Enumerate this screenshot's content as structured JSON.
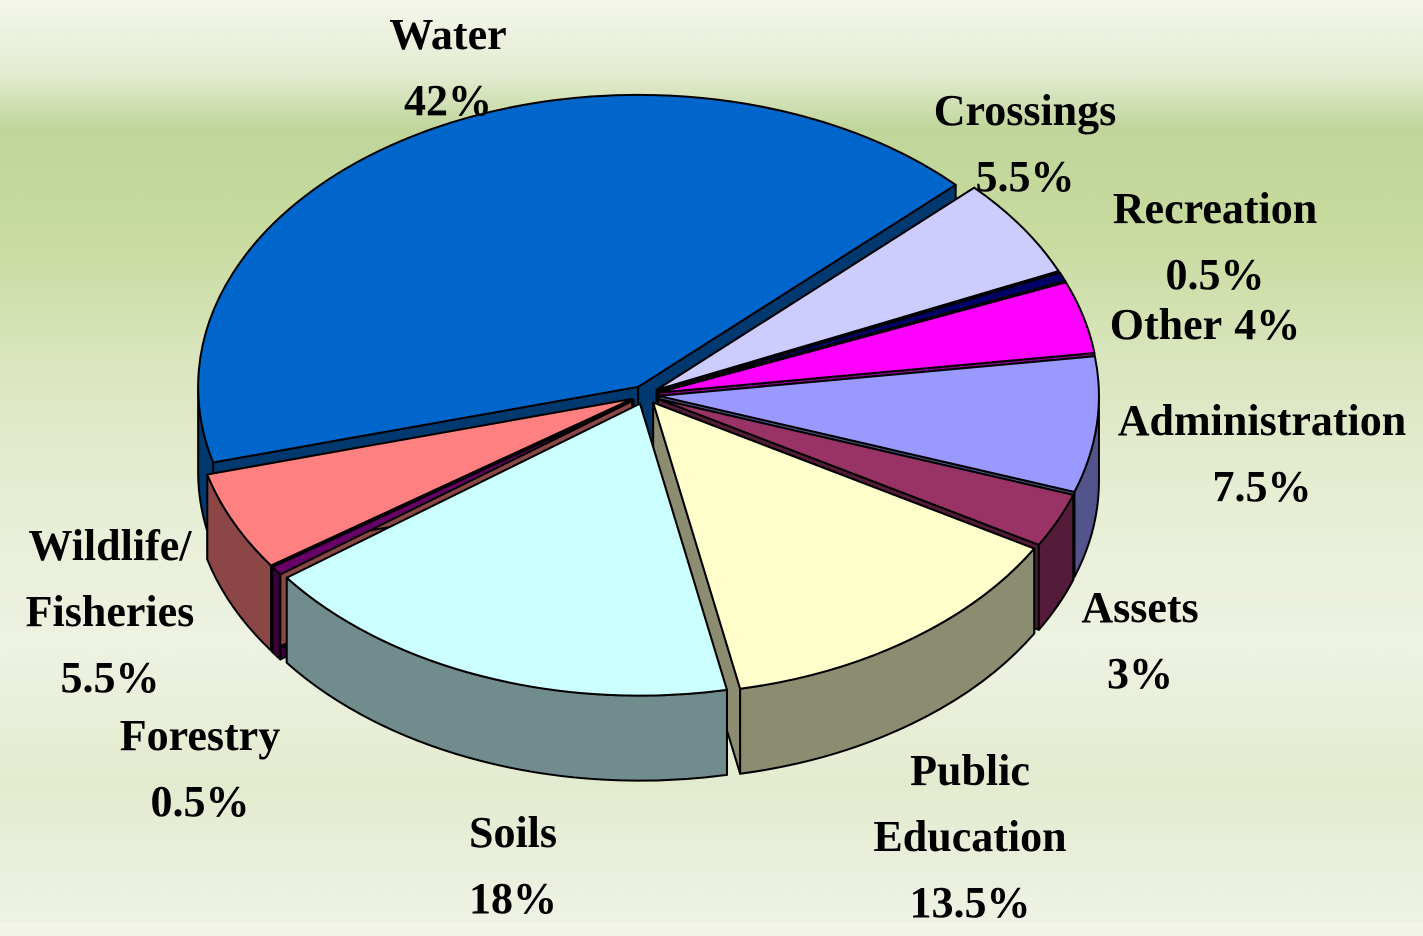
{
  "chart_data": {
    "type": "pie",
    "categories": [
      "Water",
      "Crossings",
      "Recreation",
      "Other",
      "Administration",
      "Assets",
      "Public Education",
      "Soils",
      "Forestry",
      "Wildlife/ Fisheries"
    ],
    "values": [
      42,
      5.5,
      0.5,
      4,
      7.5,
      3,
      13.5,
      18,
      0.5,
      5.5
    ],
    "value_labels": [
      "42%",
      "5.5%",
      "0.5%",
      "4%",
      "7.5%",
      "3%",
      "13.5%",
      "18%",
      "0.5%",
      "5.5%"
    ],
    "colors": [
      "#0066cc",
      "#ccccff",
      "#000066",
      "#ff00ff",
      "#9999ff",
      "#993366",
      "#ffffcc",
      "#ccffff",
      "#660066",
      "#ff8080"
    ]
  }
}
